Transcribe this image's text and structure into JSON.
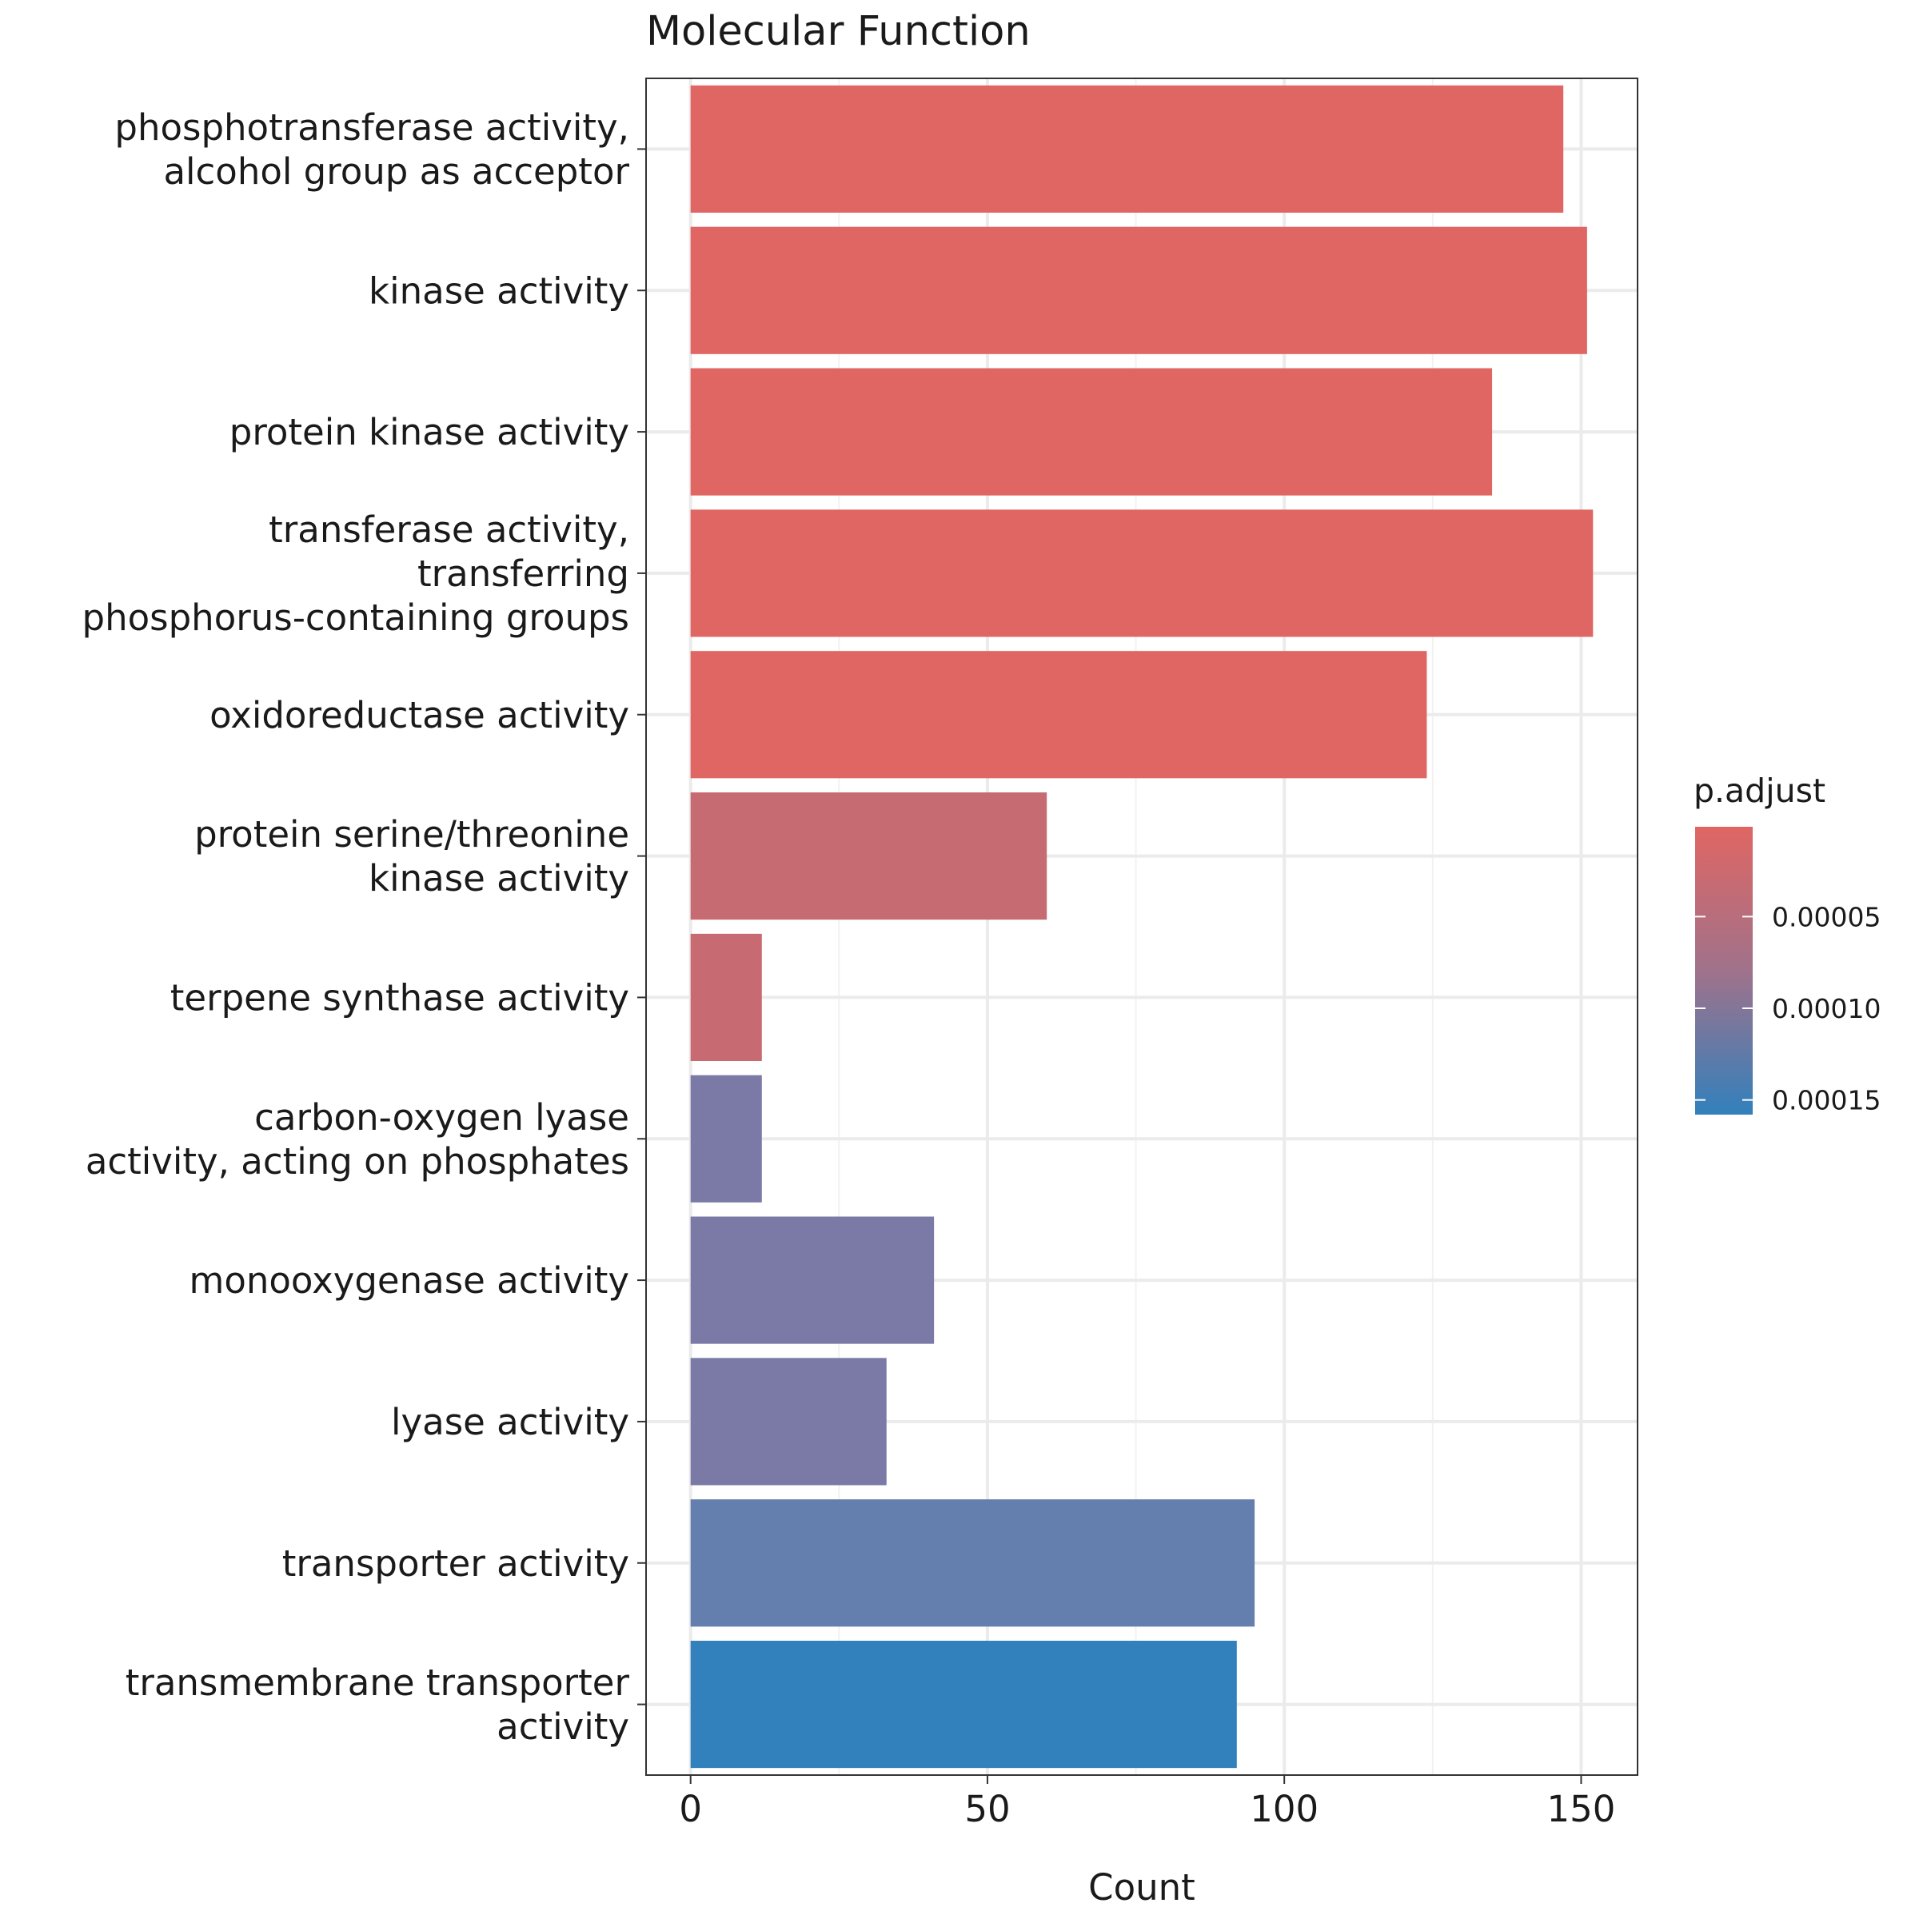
{
  "chart_data": {
    "type": "bar",
    "orientation": "horizontal",
    "title": "Molecular Function",
    "xlabel": "Count",
    "ylabel": "",
    "xlim": [
      -7.5,
      159.5
    ],
    "x_ticks": [
      0,
      50,
      100,
      150
    ],
    "x_tick_labels": [
      "0",
      "50",
      "100",
      "150"
    ],
    "grid": true,
    "categories": [
      [
        "phosphotransferase activity,",
        "alcohol group as acceptor"
      ],
      [
        "kinase activity"
      ],
      [
        "protein kinase activity"
      ],
      [
        "transferase activity,",
        "transferring",
        "phosphorus-containing groups"
      ],
      [
        "oxidoreductase activity"
      ],
      [
        "protein serine/threonine",
        "kinase activity"
      ],
      [
        "terpene synthase activity"
      ],
      [
        "carbon-oxygen lyase",
        "activity, acting on phosphates"
      ],
      [
        "monooxygenase activity"
      ],
      [
        "lyase activity"
      ],
      [
        "transporter activity"
      ],
      [
        "transmembrane transporter",
        "activity"
      ]
    ],
    "values": [
      147,
      151,
      135,
      152,
      124,
      60,
      12,
      12,
      41,
      33,
      95,
      92
    ],
    "p_adjust": [
      1e-06,
      1e-06,
      1e-06,
      1e-06,
      1e-06,
      3e-05,
      3e-05,
      0.0001,
      0.0001,
      0.0001,
      0.00012,
      0.00016
    ],
    "bar_colors": [
      "#e06663",
      "#e06663",
      "#e06663",
      "#e06663",
      "#e06663",
      "#c76b72",
      "#c76a72",
      "#7b7aa6",
      "#7b7aa6",
      "#7b7aa6",
      "#647ead",
      "#3280bc"
    ],
    "legend": {
      "title": "p.adjust",
      "position": "right",
      "range": [
        1e-06,
        0.000158
      ],
      "ticks": [
        5e-05,
        0.0001,
        0.00015
      ],
      "tick_labels": [
        "0.00005",
        "0.00010",
        "0.00015"
      ],
      "color_low": "#e06663",
      "color_high": "#3280bc"
    }
  }
}
